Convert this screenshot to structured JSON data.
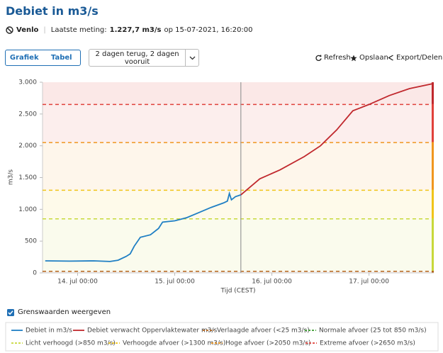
{
  "header": {
    "title": "Debiet in m3/s",
    "location": "Venlo",
    "measurement_label": "Laatste meting:",
    "measurement_value": "1.227,7 m3/s",
    "measurement_time": "op 15-07-2021, 16:20:00"
  },
  "controls": {
    "tabs": [
      "Grafiek",
      "Tabel"
    ],
    "range": "2 dagen terug, 2 dagen vooruit",
    "actions": [
      "Refresh",
      "Opslaan",
      "Export/Delen"
    ],
    "checkbox": "Grenswaarden weergeven"
  },
  "chart_data": {
    "type": "line",
    "ylabel": "m3/s",
    "xlabel": "Tijd (CEST)",
    "xlim": [
      "13. jul 15:20",
      "17. jul 16:00"
    ],
    "xticks": [
      "14. jul 00:00",
      "15. jul 00:00",
      "16. jul 00:00",
      "17. jul 00:00"
    ],
    "ylim": [
      0,
      3000
    ],
    "yticks": [
      0,
      500,
      {
        "value": 1000,
        "label": "1.000"
      },
      {
        "value": 1500,
        "label": "1.500"
      },
      {
        "value": 2000,
        "label": "2.000"
      },
      {
        "value": 2500,
        "label": "2.500"
      },
      {
        "value": 3000,
        "label": "3.000"
      }
    ],
    "grid": false,
    "series": [
      {
        "name": "Debiet in m3/s",
        "color": "#1f7fc4",
        "x": [
          "13. jul 16:00",
          "13. jul 22:00",
          "14. jul 04:00",
          "14. jul 08:00",
          "14. jul 10:00",
          "14. jul 12:00",
          "14. jul 13:00",
          "14. jul 14:00",
          "14. jul 15:30",
          "14. jul 18:00",
          "14. jul 20:00",
          "14. jul 21:00",
          "15. jul 00:00",
          "15. jul 03:00",
          "15. jul 06:00",
          "15. jul 09:00",
          "15. jul 12:00",
          "15. jul 13:00",
          "15. jul 13:30",
          "15. jul 14:00",
          "15. jul 15:00",
          "15. jul 16:20"
        ],
        "values": [
          190,
          185,
          190,
          180,
          200,
          260,
          300,
          420,
          560,
          600,
          700,
          800,
          820,
          870,
          950,
          1030,
          1100,
          1130,
          1250,
          1150,
          1200,
          1227.7
        ]
      },
      {
        "name": "Debiet verwacht Oppervlaktewater m3/s",
        "color": "#c0282d",
        "x": [
          "15. jul 16:20",
          "15. jul 21:00",
          "16. jul 02:00",
          "16. jul 08:00",
          "16. jul 12:00",
          "16. jul 16:00",
          "16. jul 20:00",
          "17. jul 00:00",
          "17. jul 05:00",
          "17. jul 10:00",
          "17. jul 16:00"
        ],
        "values": [
          1227.7,
          1480,
          1620,
          1830,
          2000,
          2250,
          2550,
          2650,
          2790,
          2900,
          2980
        ]
      }
    ],
    "thresholds": [
      {
        "name": "Verlaagde afvoer (<25 m3/s)",
        "color": "#b5651d",
        "value": 25
      },
      {
        "name": "Normale afvoer (25 tot 850 m3/s)",
        "color": "#3a9a2f"
      },
      {
        "name": "Licht verhoogd (>850 m3/s)",
        "color": "#c8d83a",
        "value": 850
      },
      {
        "name": "Verhoogde afvoer (>1300 m3/s)",
        "color": "#f0c419",
        "value": 1300
      },
      {
        "name": "Hoge afvoer (>2050 m3/s)",
        "color": "#f0961e",
        "value": 2050
      },
      {
        "name": "Extreme afvoer (>2650 m3/s)",
        "color": "#e0403a",
        "value": 2650
      }
    ]
  }
}
